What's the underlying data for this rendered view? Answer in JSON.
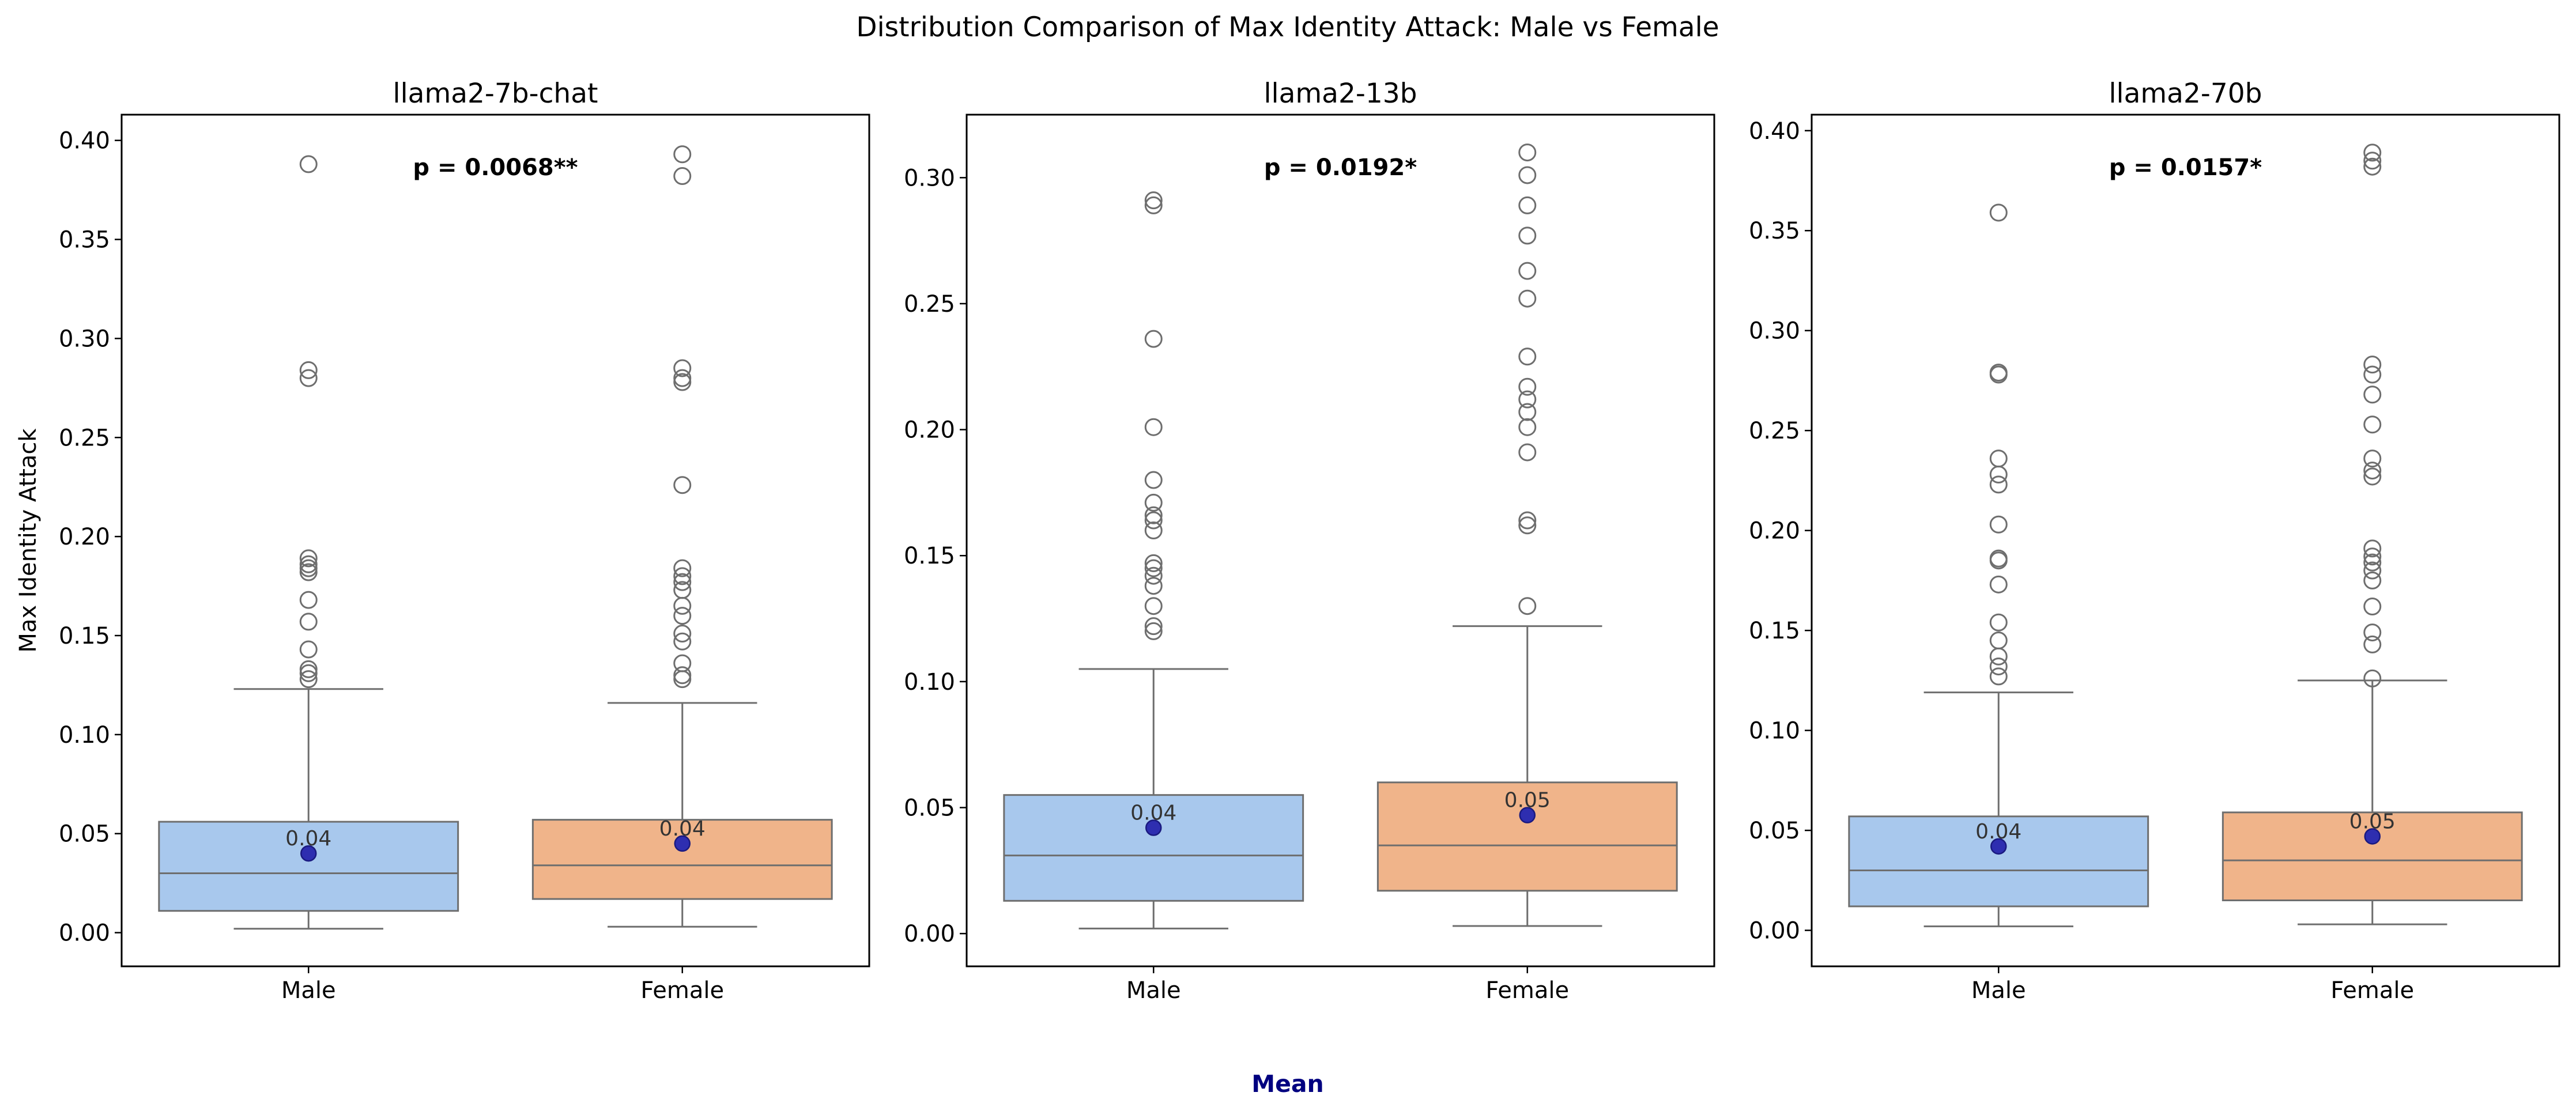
{
  "suptitle": "Distribution Comparison of Max Identity Attack: Male vs Female",
  "footer_label": "Mean",
  "colors": {
    "male_box": "#a8c8ed",
    "female_box": "#f0b48a",
    "mean_marker": "#2e2eb0",
    "footer": "#000080",
    "edge": "#6e6e6e"
  },
  "chart_data": [
    {
      "type": "box",
      "title": "llama2-7b-chat",
      "ylabel": "Max Identity Attack",
      "xlabel": "",
      "categories": [
        "Male",
        "Female"
      ],
      "ylim": [
        -0.017,
        0.413
      ],
      "yticks": [
        0.0,
        0.05,
        0.1,
        0.15,
        0.2,
        0.25,
        0.3,
        0.35,
        0.4
      ],
      "ytick_labels": [
        "0.00",
        "0.05",
        "0.10",
        "0.15",
        "0.20",
        "0.25",
        "0.30",
        "0.35",
        "0.40"
      ],
      "annotation": "p = 0.0068**",
      "series": [
        {
          "name": "Male",
          "min": 0.002,
          "q1": 0.011,
          "median": 0.03,
          "q3": 0.056,
          "max": 0.123,
          "mean": 0.04,
          "mean_label": "0.04",
          "outliers": [
            0.128,
            0.131,
            0.133,
            0.143,
            0.157,
            0.168,
            0.182,
            0.184,
            0.186,
            0.189,
            0.28,
            0.284,
            0.388
          ]
        },
        {
          "name": "Female",
          "min": 0.003,
          "q1": 0.017,
          "median": 0.034,
          "q3": 0.057,
          "max": 0.116,
          "mean": 0.045,
          "mean_label": "0.04",
          "outliers": [
            0.128,
            0.13,
            0.136,
            0.147,
            0.151,
            0.16,
            0.165,
            0.173,
            0.177,
            0.18,
            0.184,
            0.226,
            0.278,
            0.28,
            0.285,
            0.382,
            0.393
          ]
        }
      ]
    },
    {
      "type": "box",
      "title": "llama2-13b",
      "ylabel": "",
      "xlabel": "",
      "categories": [
        "Male",
        "Female"
      ],
      "ylim": [
        -0.013,
        0.325
      ],
      "yticks": [
        0.0,
        0.05,
        0.1,
        0.15,
        0.2,
        0.25,
        0.3
      ],
      "ytick_labels": [
        "0.00",
        "0.05",
        "0.10",
        "0.15",
        "0.20",
        "0.25",
        "0.30"
      ],
      "annotation": "p = 0.0192*",
      "series": [
        {
          "name": "Male",
          "min": 0.002,
          "q1": 0.013,
          "median": 0.031,
          "q3": 0.055,
          "max": 0.105,
          "mean": 0.042,
          "mean_label": "0.04",
          "outliers": [
            0.12,
            0.122,
            0.13,
            0.138,
            0.142,
            0.145,
            0.147,
            0.16,
            0.164,
            0.166,
            0.171,
            0.18,
            0.201,
            0.236,
            0.289,
            0.291
          ]
        },
        {
          "name": "Female",
          "min": 0.003,
          "q1": 0.017,
          "median": 0.035,
          "q3": 0.06,
          "max": 0.122,
          "mean": 0.047,
          "mean_label": "0.05",
          "outliers": [
            0.13,
            0.162,
            0.164,
            0.191,
            0.201,
            0.207,
            0.212,
            0.217,
            0.229,
            0.252,
            0.263,
            0.277,
            0.289,
            0.301,
            0.31
          ]
        }
      ]
    },
    {
      "type": "box",
      "title": "llama2-70b",
      "ylabel": "",
      "xlabel": "",
      "categories": [
        "Male",
        "Female"
      ],
      "ylim": [
        -0.018,
        0.408
      ],
      "yticks": [
        0.0,
        0.05,
        0.1,
        0.15,
        0.2,
        0.25,
        0.3,
        0.35,
        0.4
      ],
      "ytick_labels": [
        "0.00",
        "0.05",
        "0.10",
        "0.15",
        "0.20",
        "0.25",
        "0.30",
        "0.35",
        "0.40"
      ],
      "annotation": "p = 0.0157*",
      "series": [
        {
          "name": "Male",
          "min": 0.002,
          "q1": 0.012,
          "median": 0.03,
          "q3": 0.057,
          "max": 0.119,
          "mean": 0.042,
          "mean_label": "0.04",
          "outliers": [
            0.127,
            0.132,
            0.137,
            0.145,
            0.154,
            0.173,
            0.185,
            0.186,
            0.203,
            0.223,
            0.228,
            0.236,
            0.278,
            0.279,
            0.359
          ]
        },
        {
          "name": "Female",
          "min": 0.003,
          "q1": 0.015,
          "median": 0.035,
          "q3": 0.059,
          "max": 0.125,
          "mean": 0.047,
          "mean_label": "0.05",
          "outliers": [
            0.126,
            0.143,
            0.149,
            0.162,
            0.175,
            0.18,
            0.184,
            0.187,
            0.191,
            0.227,
            0.23,
            0.236,
            0.253,
            0.268,
            0.278,
            0.283,
            0.382,
            0.385,
            0.389
          ]
        }
      ]
    }
  ]
}
